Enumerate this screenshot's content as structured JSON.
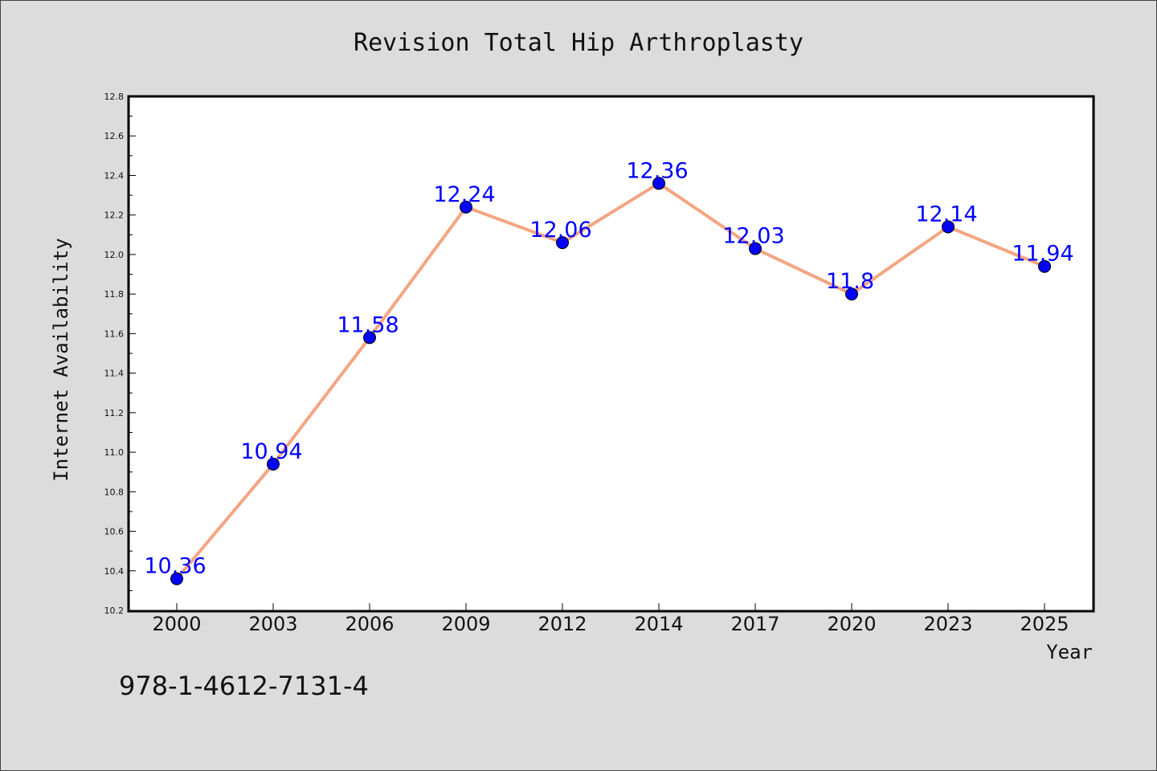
{
  "chart_data": {
    "type": "line",
    "title": "Revision Total Hip Arthroplasty",
    "xlabel": "Year",
    "ylabel": "Internet Availability",
    "categories": [
      "2000",
      "2003",
      "2006",
      "2009",
      "2012",
      "2014",
      "2017",
      "2020",
      "2023",
      "2025"
    ],
    "series": [
      {
        "values": [
          10.36,
          10.94,
          11.58,
          12.24,
          12.06,
          12.36,
          12.03,
          11.8,
          12.14,
          11.94
        ]
      }
    ],
    "data_labels": [
      "10.36",
      "10.94",
      "11.58",
      "12.24",
      "12.06",
      "12.36",
      "12.03",
      "11.8",
      "12.14",
      "11.94"
    ],
    "ylim": [
      10.2,
      12.8
    ],
    "yticks": [
      "10.2",
      "10.4",
      "10.6",
      "10.8",
      "11.0",
      "11.2",
      "11.4",
      "11.6",
      "11.8",
      "12.0",
      "12.2",
      "12.4",
      "12.6",
      "12.8"
    ],
    "grid": false,
    "legend": "none",
    "colors": {
      "line": "#f4a582",
      "marker": "#0000ff",
      "label": "#0000ff"
    }
  },
  "footnote": "978-1-4612-7131-4"
}
